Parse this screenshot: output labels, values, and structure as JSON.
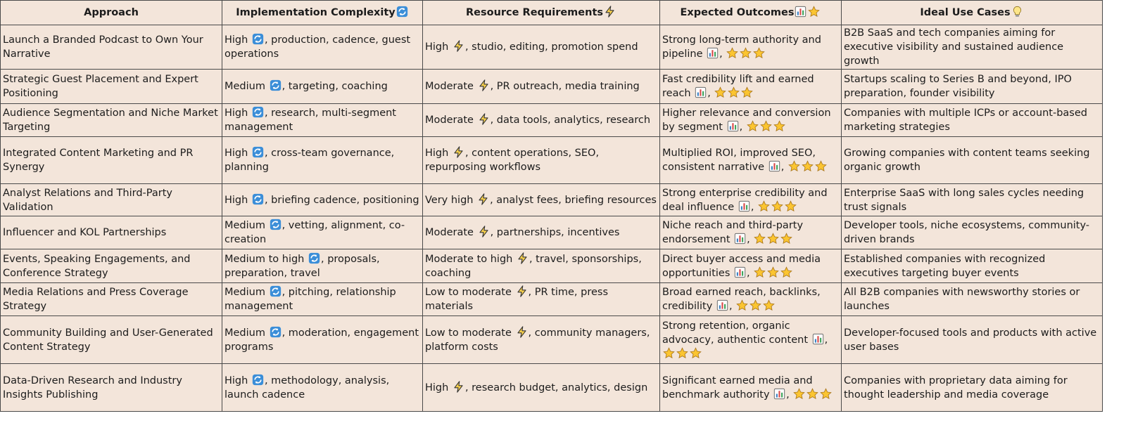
{
  "table": {
    "headers": [
      "Approach",
      "Implementation Complexity",
      "Resource Requirements",
      "Expected Outcomes",
      "Ideal Use Cases"
    ],
    "rows": [
      {
        "approach": "Launch a Branded Podcast to Own Your Narrative",
        "complexity": [
          "High",
          ", production, cadence, guest operations"
        ],
        "resources": [
          "High",
          ", studio, editing, promotion spend"
        ],
        "outcome": [
          "Strong long-term authority and pipeline",
          ","
        ],
        "use_case": "B2B SaaS and tech companies aiming for executive visibility and sustained audience growth"
      },
      {
        "approach": "Strategic Guest Placement and Expert Positioning",
        "complexity": [
          "Medium",
          ", targeting, coaching"
        ],
        "resources": [
          "Moderate",
          ", PR outreach, media training"
        ],
        "outcome": [
          "Fast credibility lift and earned reach",
          ","
        ],
        "use_case": "Startups scaling to Series B and beyond, IPO preparation, founder visibility"
      },
      {
        "approach": "Audience Segmentation and Niche Market Targeting",
        "complexity": [
          "High",
          ", research, multi-segment management"
        ],
        "resources": [
          "Moderate",
          ", data tools, analytics, research"
        ],
        "outcome": [
          "Higher relevance and conversion by segment",
          ","
        ],
        "use_case": "Companies with multiple ICPs or account-based marketing strategies"
      },
      {
        "approach": "Integrated Content Marketing and PR Synergy",
        "complexity": [
          "High",
          ", cross-team governance, planning"
        ],
        "resources": [
          "High",
          ", content operations, SEO, repurposing workflows"
        ],
        "outcome": [
          "Multiplied ROI, improved SEO, consistent narrative",
          ","
        ],
        "use_case": "Growing companies with content teams seeking organic growth"
      },
      {
        "approach": "Analyst Relations and Third-Party Validation",
        "complexity": [
          "High",
          ", briefing cadence, positioning"
        ],
        "resources": [
          "Very high",
          ", analyst fees, briefing resources"
        ],
        "outcome": [
          "Strong enterprise credibility and deal influence",
          ","
        ],
        "use_case": "Enterprise SaaS with long sales cycles needing trust signals"
      },
      {
        "approach": "Influencer and KOL Partnerships",
        "complexity": [
          "Medium",
          ", vetting, alignment, co-creation"
        ],
        "resources": [
          "Moderate",
          ", partnerships, incentives"
        ],
        "outcome": [
          "Niche reach and third-party endorsement",
          ","
        ],
        "use_case": "Developer tools, niche ecosystems, community-driven brands"
      },
      {
        "approach": "Events, Speaking Engagements, and Conference Strategy",
        "complexity": [
          "Medium to high",
          ", proposals, preparation, travel"
        ],
        "resources": [
          "Moderate to high",
          ", travel, sponsorships, coaching"
        ],
        "outcome": [
          "Direct buyer access and media opportunities",
          ","
        ],
        "use_case": "Established companies with recognized executives targeting buyer events"
      },
      {
        "approach": "Media Relations and Press Coverage Strategy",
        "complexity": [
          "Medium",
          ", pitching, relationship management"
        ],
        "resources": [
          "Low to moderate",
          ", PR time, press materials"
        ],
        "outcome": [
          "Broad earned reach, backlinks, credibility",
          ","
        ],
        "use_case": "All B2B companies with newsworthy stories or launches"
      },
      {
        "approach": "Community Building and User-Generated Content Strategy",
        "complexity": [
          "Medium",
          ", moderation, engagement programs"
        ],
        "resources": [
          "Low to moderate",
          ", community managers, platform costs"
        ],
        "outcome": [
          "Strong retention, organic advocacy, authentic content",
          ","
        ],
        "use_case": "Developer-focused tools and products with active user bases"
      },
      {
        "approach": "Data-Driven Research and Industry Insights Publishing",
        "complexity": [
          "High",
          ", methodology, analysis, launch cadence"
        ],
        "resources": [
          "High",
          ", research budget, analytics, design"
        ],
        "outcome": [
          "Significant earned media and benchmark authority",
          ","
        ],
        "use_case": "Companies with proprietary data aiming for thought leadership and media coverage"
      }
    ]
  }
}
